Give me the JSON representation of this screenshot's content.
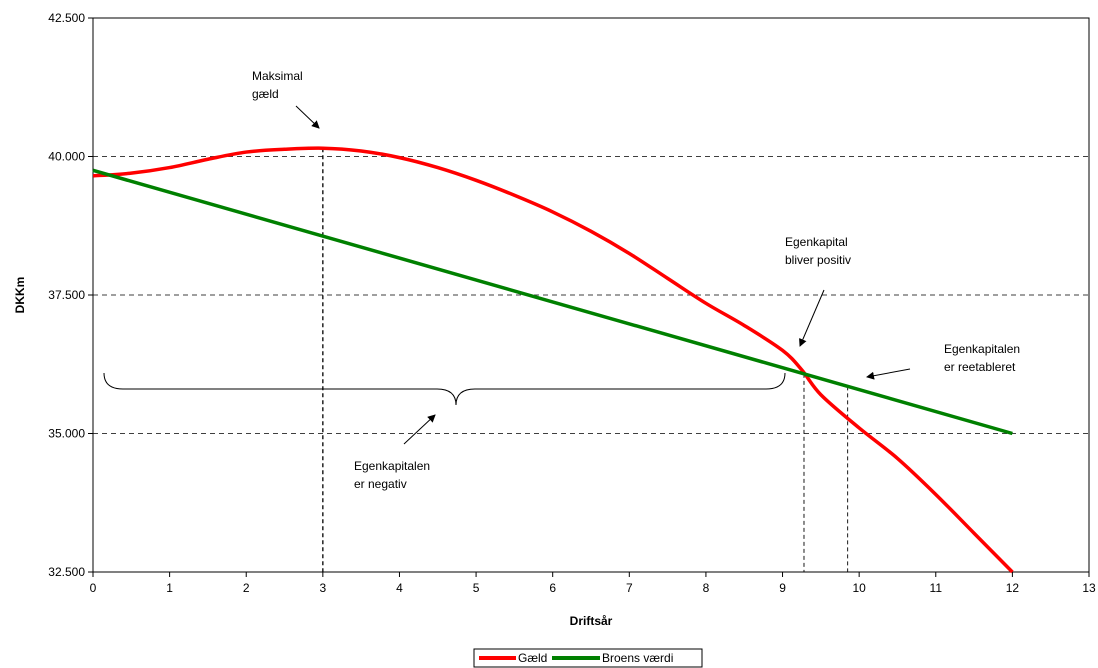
{
  "chart_data": {
    "type": "line",
    "xlabel": "Driftsår",
    "ylabel": "DKKm",
    "xlim": [
      0,
      13
    ],
    "ylim": [
      32500,
      42500
    ],
    "x_ticks": [
      0,
      1,
      2,
      3,
      4,
      5,
      6,
      7,
      8,
      9,
      10,
      11,
      12,
      13
    ],
    "x_tick_labels": [
      "0",
      "1",
      "2",
      "3",
      "4",
      "5",
      "6",
      "7",
      "8",
      "9",
      "10",
      "11",
      "12",
      "13"
    ],
    "y_ticks": [
      32500,
      35000,
      37500,
      40000,
      42500
    ],
    "y_tick_labels": [
      "32.500",
      "35.000",
      "37.500",
      "40.000",
      "42.500"
    ],
    "gridlines": "horizontal dashed",
    "legend_position": "bottom",
    "series": [
      {
        "name": "Gæld",
        "color": "#ff0000",
        "x": [
          0,
          0.5,
          1,
          1.5,
          2,
          2.5,
          3,
          3.5,
          4,
          4.5,
          5,
          5.5,
          6,
          6.5,
          7,
          7.5,
          8,
          8.5,
          9,
          9.25,
          9.5,
          10,
          10.5,
          11,
          11.5,
          12
        ],
        "y": [
          39650,
          39700,
          39800,
          39950,
          40080,
          40130,
          40150,
          40100,
          39980,
          39800,
          39570,
          39300,
          39000,
          38650,
          38250,
          37800,
          37350,
          36950,
          36500,
          36150,
          35700,
          35100,
          34550,
          33900,
          33200,
          32500
        ]
      },
      {
        "name": "Broens værdi",
        "color": "#008000",
        "x": [
          0,
          12
        ],
        "y": [
          39750,
          35000
        ]
      }
    ],
    "annotations": [
      {
        "text": [
          "Maksimal",
          "gæld"
        ]
      },
      {
        "text": [
          "Egenkapital",
          "bliver positiv"
        ]
      },
      {
        "text": [
          "Egenkapitalen",
          "er reetableret"
        ]
      },
      {
        "text": [
          "Egenkapitalen",
          "er negativ"
        ]
      }
    ],
    "reference_lines_x": [
      3,
      9.28,
      9.85
    ]
  }
}
